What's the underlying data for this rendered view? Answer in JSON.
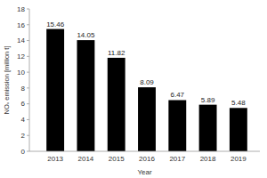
{
  "chart_data": {
    "type": "bar",
    "x_label": "Year",
    "y_label": "NOₓ emission [million t]",
    "categories": [
      "2013",
      "2014",
      "2015",
      "2016",
      "2017",
      "2018",
      "2019"
    ],
    "values": [
      15.46,
      14.05,
      11.82,
      8.09,
      6.47,
      5.89,
      5.48
    ],
    "color": "#000000",
    "ylim": [
      0,
      18
    ],
    "yticks": [
      0,
      2,
      4,
      6,
      8,
      10,
      12,
      14,
      16,
      18
    ],
    "grid": false,
    "data_labels": true
  }
}
